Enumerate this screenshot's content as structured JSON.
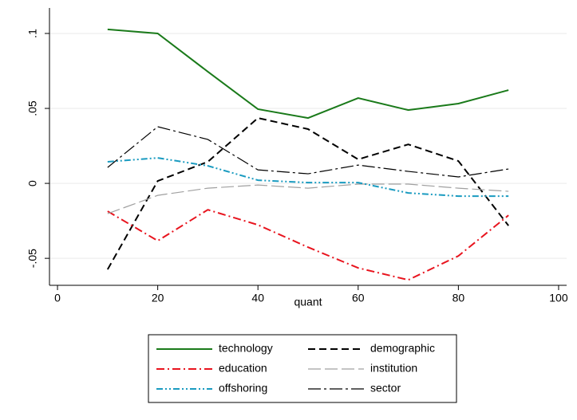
{
  "chart_data": {
    "type": "line",
    "x_label": "quant",
    "xlim": [
      -1.6,
      101.6
    ],
    "xticks": [
      0,
      20,
      40,
      60,
      80,
      100
    ],
    "ylim": [
      -0.068,
      0.117
    ],
    "yticks": [
      {
        "value": -0.05,
        "label": "-.05"
      },
      0,
      {
        "value": 0.05,
        "label": ".05"
      },
      {
        "value": 0.1,
        "label": ".1"
      }
    ],
    "grid": true,
    "x": [
      10,
      20,
      30,
      40,
      50,
      60,
      70,
      80,
      90
    ],
    "series": [
      {
        "name": "technology",
        "color": "#1a7a1a",
        "dash": "none",
        "values": [
          0.1027,
          0.1,
          0.0745,
          0.0495,
          0.0436,
          0.0569,
          0.0489,
          0.0532,
          0.0622
        ]
      },
      {
        "name": "demographic",
        "color": "#000000",
        "dash": "9,5",
        "values": [
          -0.0574,
          0.0016,
          0.0144,
          0.0436,
          0.0362,
          0.016,
          0.026,
          0.0149,
          -0.0282
        ]
      },
      {
        "name": "education",
        "color": "#e8141e",
        "dash": "10,4,2,4",
        "values": [
          -0.0186,
          -0.0383,
          -0.0176,
          -0.0277,
          -0.0426,
          -0.0564,
          -0.0644,
          -0.0484,
          -0.0213
        ]
      },
      {
        "name": "institution",
        "color": "#a0a0a0",
        "dash": "16,5",
        "values": [
          -0.0202,
          -0.008,
          -0.0032,
          -0.0011,
          -0.0032,
          -0.0005,
          -0.0005,
          -0.0032,
          -0.0053
        ]
      },
      {
        "name": "offshoring",
        "color": "#1a9bc0",
        "dash": "8,3,2,3,2,3",
        "values": [
          0.0144,
          0.017,
          0.0117,
          0.0021,
          0.0005,
          0.0005,
          -0.0064,
          -0.0085,
          -0.0085
        ]
      },
      {
        "name": "sector",
        "color": "#000000",
        "dash": "16,4,3,4",
        "values": [
          0.0106,
          0.0378,
          0.0293,
          0.009,
          0.0064,
          0.0122,
          0.008,
          0.0043,
          0.0096
        ]
      }
    ]
  }
}
